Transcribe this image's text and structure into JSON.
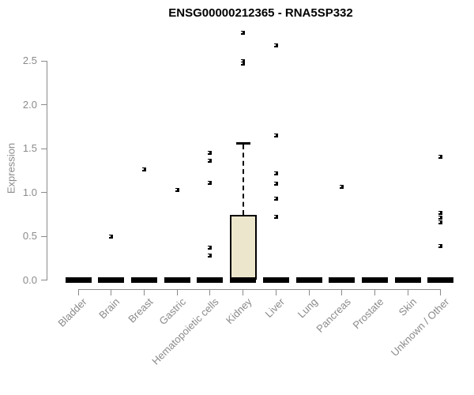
{
  "title": "ENSG00000212365 - RNA5SP332",
  "chart_data": {
    "type": "boxplot",
    "title": "ENSG00000212365 - RNA5SP332",
    "xlabel": "",
    "ylabel": "Expression",
    "ylim": [
      0,
      2.9
    ],
    "ytick_labels": [
      "0.0",
      "0.5",
      "1.0",
      "1.5",
      "2.0",
      "2.5"
    ],
    "grid": false,
    "legend": "none",
    "categories": [
      "Bladder",
      "Brain",
      "Breast",
      "Gastric",
      "Hematopoietic cells",
      "Kidney",
      "Liver",
      "Lung",
      "Pancreas",
      "Prostate",
      "Skin",
      "Unknown / Other"
    ],
    "boxes": [
      {
        "category": "Bladder",
        "median": 0,
        "q1": 0,
        "q3": 0,
        "whisker_low": 0,
        "whisker_high": 0,
        "points": []
      },
      {
        "category": "Brain",
        "median": 0,
        "q1": 0,
        "q3": 0,
        "whisker_low": 0,
        "whisker_high": 0,
        "points": [
          0.5
        ]
      },
      {
        "category": "Breast",
        "median": 0,
        "q1": 0,
        "q3": 0,
        "whisker_low": 0,
        "whisker_high": 0,
        "points": [
          1.26
        ]
      },
      {
        "category": "Gastric",
        "median": 0,
        "q1": 0,
        "q3": 0,
        "whisker_low": 0,
        "whisker_high": 0,
        "points": [
          1.03
        ]
      },
      {
        "category": "Hematopoietic cells",
        "median": 0,
        "q1": 0,
        "q3": 0,
        "whisker_low": 0,
        "whisker_high": 0,
        "points": [
          1.45,
          1.36,
          1.11,
          0.37,
          0.28
        ]
      },
      {
        "category": "Kidney",
        "median": 0,
        "q1": 0,
        "q3": 0.74,
        "whisker_low": 0,
        "whisker_high": 1.57,
        "points": [
          2.82,
          2.5,
          2.47
        ]
      },
      {
        "category": "Liver",
        "median": 0,
        "q1": 0,
        "q3": 0,
        "whisker_low": 0,
        "whisker_high": 0,
        "points": [
          2.68,
          1.65,
          1.22,
          1.1,
          0.93,
          0.72
        ]
      },
      {
        "category": "Lung",
        "median": 0,
        "q1": 0,
        "q3": 0,
        "whisker_low": 0,
        "whisker_high": 0,
        "points": []
      },
      {
        "category": "Pancreas",
        "median": 0,
        "q1": 0,
        "q3": 0,
        "whisker_low": 0,
        "whisker_high": 0,
        "points": [
          1.06
        ]
      },
      {
        "category": "Prostate",
        "median": 0,
        "q1": 0,
        "q3": 0,
        "whisker_low": 0,
        "whisker_high": 0,
        "points": []
      },
      {
        "category": "Skin",
        "median": 0,
        "q1": 0,
        "q3": 0,
        "whisker_low": 0,
        "whisker_high": 0,
        "points": []
      },
      {
        "category": "Unknown / Other",
        "median": 0,
        "q1": 0,
        "q3": 0,
        "whisker_low": 0,
        "whisker_high": 0,
        "points": [
          1.41,
          0.77,
          0.71,
          0.66,
          0.39
        ]
      }
    ],
    "colors": {
      "box_fill": "#ece7cc",
      "box_border": "#000000",
      "point": "#000000",
      "median": "#000000",
      "axis": "#8a8a8a",
      "tick_label": "#8a8a8a",
      "title": "#000000",
      "background": "#ffffff"
    }
  }
}
